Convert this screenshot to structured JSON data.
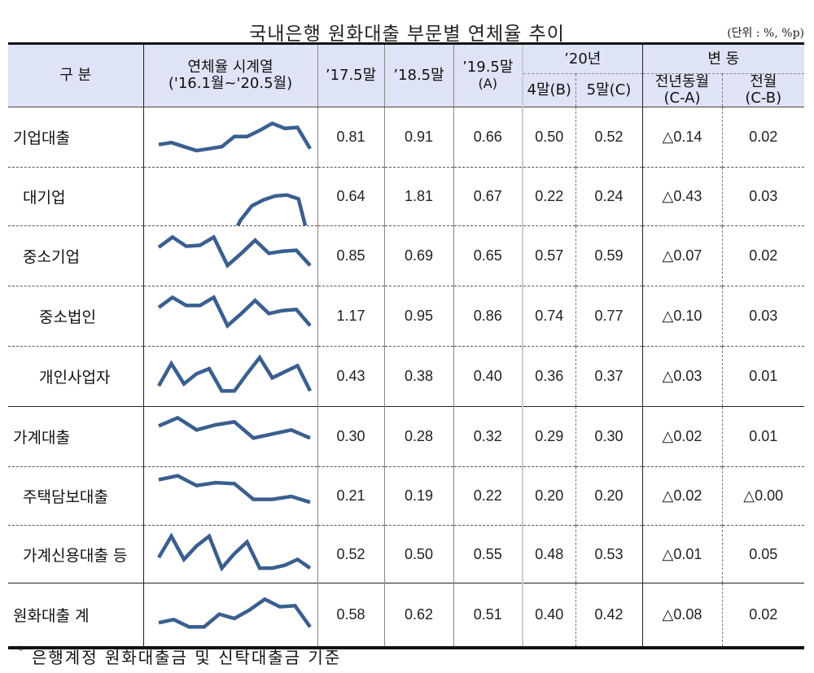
{
  "title": "국내은행 원화대출 부문별 연체율 추이",
  "unit": "(단위 : %, %p)",
  "header": {
    "category": "구 분",
    "series_col_line1": "연체율 시계열",
    "series_col_line2": "('16.1월~'20.5월)",
    "col_17": "’17.5말",
    "col_18": "’18.5말",
    "col_19_line1": "’19.5말",
    "col_19_line2": "(A)",
    "year_20": "’20년",
    "col_apr": "4말(B)",
    "col_may": "5말(C)",
    "change": "변 동",
    "yoy_line1": "전년동월",
    "yoy_line2": "(C-A)",
    "mom_line1": "전월",
    "mom_line2": "(C-B)"
  },
  "rows": [
    {
      "label": "기업대출",
      "level": 1,
      "v17": "0.81",
      "v18": "0.91",
      "v19": "0.66",
      "apr": "0.50",
      "may": "0.52",
      "yoy": "△0.14",
      "mom": "0.02",
      "spark": [
        0.62,
        0.64,
        0.6,
        0.56,
        0.58,
        0.6,
        0.7,
        0.7,
        0.76,
        0.83,
        0.78,
        0.79,
        0.58
      ]
    },
    {
      "label": "대기업",
      "level": 2,
      "v17": "0.64",
      "v18": "1.81",
      "v19": "0.67",
      "apr": "0.22",
      "may": "0.24",
      "yoy": "△0.43",
      "mom": "0.03",
      "spark": [
        0.2,
        0.2,
        0.2,
        0.2,
        0.2,
        0.2,
        0.2,
        0.45,
        0.6,
        0.66,
        0.7,
        0.71,
        0.67,
        0.2
      ]
    },
    {
      "label": "중소기업",
      "level": 2,
      "v17": "0.85",
      "v18": "0.69",
      "v19": "0.65",
      "apr": "0.57",
      "may": "0.59",
      "yoy": "△0.07",
      "mom": "0.02",
      "spark": [
        0.78,
        0.88,
        0.79,
        0.8,
        0.88,
        0.6,
        0.72,
        0.85,
        0.72,
        0.74,
        0.75,
        0.6
      ]
    },
    {
      "label": "중소법인",
      "level": 3,
      "v17": "1.17",
      "v18": "0.95",
      "v19": "0.86",
      "apr": "0.74",
      "may": "0.77",
      "yoy": "△0.10",
      "mom": "0.03",
      "spark": [
        0.78,
        0.88,
        0.8,
        0.8,
        0.88,
        0.6,
        0.72,
        0.85,
        0.72,
        0.75,
        0.76,
        0.6
      ]
    },
    {
      "label": "개인사업자",
      "level": 3,
      "v17": "0.43",
      "v18": "0.38",
      "v19": "0.40",
      "apr": "0.36",
      "may": "0.37",
      "yoy": "△0.03",
      "mom": "0.01",
      "spark": [
        0.6,
        0.82,
        0.62,
        0.72,
        0.77,
        0.55,
        0.55,
        0.72,
        0.88,
        0.68,
        0.74,
        0.8,
        0.55
      ]
    },
    {
      "label": "가계대출",
      "level": 1,
      "v17": "0.30",
      "v18": "0.28",
      "v19": "0.32",
      "apr": "0.29",
      "may": "0.30",
      "yoy": "△0.02",
      "mom": "0.01",
      "spark": [
        0.8,
        0.88,
        0.76,
        0.81,
        0.84,
        0.68,
        0.72,
        0.76,
        0.68
      ]
    },
    {
      "label": "주택담보대출",
      "level": 2,
      "v17": "0.21",
      "v18": "0.19",
      "v19": "0.22",
      "apr": "0.20",
      "may": "0.20",
      "yoy": "△0.02",
      "mom": "△0.00",
      "spark": [
        0.86,
        0.9,
        0.8,
        0.83,
        0.82,
        0.66,
        0.66,
        0.69,
        0.63
      ]
    },
    {
      "label": "가계신용대출 등",
      "level": 2,
      "v17": "0.52",
      "v18": "0.50",
      "v19": "0.55",
      "apr": "0.48",
      "may": "0.53",
      "yoy": "△0.01",
      "mom": "0.05",
      "spark": [
        0.66,
        0.88,
        0.64,
        0.78,
        0.88,
        0.55,
        0.7,
        0.82,
        0.55,
        0.55,
        0.58,
        0.64,
        0.55
      ]
    },
    {
      "label": "원화대출 계",
      "level": 1,
      "v17": "0.58",
      "v18": "0.62",
      "v19": "0.51",
      "apr": "0.40",
      "may": "0.42",
      "yoy": "△0.08",
      "mom": "0.02",
      "spark": [
        0.62,
        0.65,
        0.58,
        0.58,
        0.7,
        0.66,
        0.74,
        0.84,
        0.77,
        0.78,
        0.58
      ]
    }
  ],
  "footnote_mark": "*",
  "footnote": "은행계정 원화대출금 및 신탁대출금 기준",
  "colors": {
    "header_bg": "#dfe3f6",
    "sparkline": "#3a5f8f"
  }
}
